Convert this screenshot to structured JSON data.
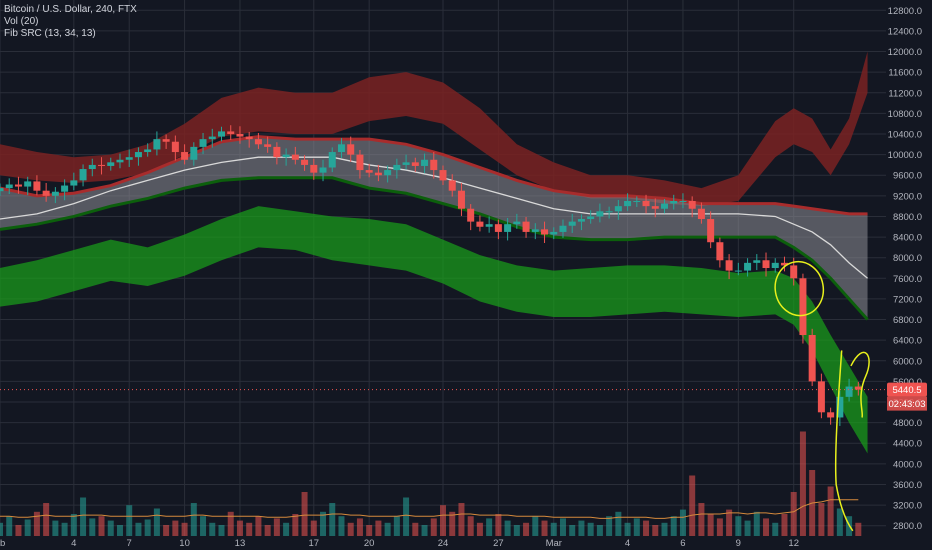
{
  "legend": {
    "symbol": "Bitcoin / U.S. Dollar, 240, FTX",
    "volume": "Vol (20)",
    "indicator": "Fib SRC (13, 34, 13)"
  },
  "price_tag": {
    "price": "5440.5",
    "countdown": "02:43:03"
  },
  "colors": {
    "background": "#131722",
    "up": "#26a69a",
    "down": "#ef5350",
    "upper_band": "#a82c2c",
    "upper_band_fill": "#7a2222",
    "mid_band": "#8e8e96",
    "basis": "#d9d9d9",
    "lower_band": "#1aa31a",
    "lower_band_dark": "#0c5f0c",
    "annotation": "#e8f01c",
    "grid": "#2a2e39"
  },
  "chart_data": {
    "type": "candlestick",
    "y_axis": {
      "labels": [
        "12800.0",
        "12400.0",
        "12000.0",
        "11600.0",
        "11200.0",
        "10800.0",
        "10400.0",
        "10000.0",
        "9600.0",
        "9200.0",
        "8800.0",
        "8400.0",
        "8000.0",
        "7600.0",
        "7200.0",
        "6800.0",
        "6400.0",
        "6000.0",
        "5600.0",
        "5200.0",
        "4800.0",
        "4400.0",
        "4000.0",
        "3600.0",
        "3200.0",
        "2800.0"
      ],
      "range": [
        2600,
        13000
      ]
    },
    "x_axis": {
      "labels": [
        "eb",
        "4",
        "7",
        "10",
        "13",
        "17",
        "20",
        "24",
        "27",
        "Mar",
        "4",
        "6",
        "9",
        "12"
      ],
      "days": [
        0,
        4,
        7,
        10,
        13,
        17,
        20,
        24,
        27,
        30,
        34,
        37,
        40,
        43
      ]
    },
    "day_range": [
      0,
      48
    ],
    "bands": {
      "x": [
        0,
        2,
        4,
        6,
        8,
        10,
        12,
        14,
        16,
        18,
        20,
        22,
        24,
        26,
        28,
        30,
        32,
        34,
        36,
        38,
        40,
        42,
        43,
        44,
        45,
        46,
        47
      ],
      "upper_top": [
        10200,
        10050,
        9950,
        10000,
        10200,
        10600,
        11100,
        11300,
        11200,
        11200,
        11500,
        11600,
        11400,
        10900,
        10200,
        9850,
        9600,
        9600,
        9500,
        9350,
        9600,
        10650,
        10900,
        10700,
        10100,
        10700,
        12000
      ],
      "upper_bot": [
        9600,
        9500,
        9450,
        9500,
        9650,
        10000,
        10350,
        10450,
        10400,
        10400,
        10650,
        10750,
        10600,
        10100,
        9600,
        9300,
        9150,
        9150,
        9050,
        9000,
        9100,
        9950,
        10200,
        10050,
        9600,
        10200,
        11200
      ],
      "mid_top": [
        9350,
        9200,
        9250,
        9400,
        9650,
        9950,
        10250,
        10350,
        10300,
        10300,
        10300,
        10200,
        10000,
        9750,
        9500,
        9300,
        9200,
        9200,
        9150,
        9050,
        9050,
        9050,
        9000,
        8950,
        8900,
        8850,
        8850
      ],
      "basis": [
        8750,
        8850,
        9050,
        9300,
        9500,
        9700,
        9850,
        9950,
        9950,
        9950,
        9800,
        9700,
        9550,
        9350,
        9150,
        8950,
        8850,
        8850,
        8850,
        8850,
        8850,
        8800,
        8650,
        8500,
        8250,
        7900,
        7600
      ],
      "mid_bot": [
        8550,
        8650,
        8800,
        9000,
        9150,
        9350,
        9500,
        9550,
        9550,
        9550,
        9350,
        9250,
        9050,
        8850,
        8600,
        8400,
        8350,
        8350,
        8400,
        8400,
        8400,
        8400,
        8200,
        7950,
        7600,
        7200,
        6800
      ],
      "green_top": [
        7800,
        7950,
        8150,
        8350,
        8200,
        8450,
        8750,
        9000,
        8900,
        8800,
        8750,
        8650,
        8350,
        8050,
        7850,
        7750,
        7800,
        7850,
        7850,
        7800,
        7700,
        7750,
        7600,
        7150,
        6500,
        5900,
        5300
      ],
      "green_bot": [
        7050,
        7150,
        7350,
        7550,
        7450,
        7650,
        7950,
        8200,
        8150,
        7950,
        7850,
        7750,
        7500,
        7150,
        6950,
        6850,
        6850,
        6900,
        6950,
        6900,
        6850,
        6900,
        6700,
        6200,
        5500,
        4800,
        4200
      ]
    },
    "candles": {
      "x": [
        0,
        0.5,
        1,
        1.5,
        2,
        2.5,
        3,
        3.5,
        4,
        4.5,
        5,
        5.5,
        6,
        6.5,
        7,
        7.5,
        8,
        8.5,
        9,
        9.5,
        10,
        10.5,
        11,
        11.5,
        12,
        12.5,
        13,
        13.5,
        14,
        14.5,
        15,
        15.5,
        16,
        16.5,
        17,
        17.5,
        18,
        18.5,
        19,
        19.5,
        20,
        20.5,
        21,
        21.5,
        22,
        22.5,
        23,
        23.5,
        24,
        24.5,
        25,
        25.5,
        26,
        26.5,
        27,
        27.5,
        28,
        28.5,
        29,
        29.5,
        30,
        30.5,
        31,
        31.5,
        32,
        32.5,
        33,
        33.5,
        34,
        34.5,
        35,
        35.5,
        36,
        36.5,
        37,
        37.5,
        38,
        38.5,
        39,
        39.5,
        40,
        40.5,
        41,
        41.5,
        42,
        42.5,
        43,
        43.5,
        44,
        44.5,
        45,
        45.5,
        46,
        46.5
      ],
      "close": [
        9350,
        9420,
        9380,
        9480,
        9300,
        9200,
        9280,
        9400,
        9500,
        9720,
        9800,
        9780,
        9850,
        9900,
        9950,
        10050,
        10100,
        10300,
        10250,
        10050,
        9900,
        10150,
        10300,
        10350,
        10450,
        10400,
        10350,
        10300,
        10200,
        10150,
        9950,
        10000,
        9900,
        9800,
        9650,
        9750,
        10050,
        10200,
        10000,
        9700,
        9650,
        9600,
        9700,
        9800,
        9850,
        9780,
        9900,
        9700,
        9500,
        9300,
        8950,
        8700,
        8600,
        8650,
        8500,
        8650,
        8700,
        8500,
        8550,
        8450,
        8500,
        8620,
        8700,
        8750,
        8800,
        8900,
        8900,
        9000,
        9100,
        9100,
        9000,
        8950,
        9050,
        9100,
        9100,
        8950,
        8750,
        8300,
        7950,
        7750,
        7750,
        7900,
        7950,
        7800,
        7900,
        7850,
        7600,
        6500,
        5600,
        5000,
        4900,
        5300,
        5500,
        5440.5
      ]
    },
    "volume": {
      "scale_max": 100,
      "values": [
        12,
        18,
        10,
        15,
        22,
        30,
        14,
        12,
        20,
        35,
        16,
        18,
        14,
        10,
        28,
        12,
        15,
        25,
        10,
        14,
        12,
        30,
        18,
        12,
        10,
        22,
        14,
        12,
        18,
        10,
        16,
        12,
        20,
        40,
        14,
        22,
        30,
        18,
        12,
        16,
        10,
        14,
        12,
        18,
        35,
        12,
        10,
        16,
        28,
        22,
        30,
        18,
        12,
        16,
        20,
        14,
        10,
        12,
        18,
        14,
        12,
        16,
        10,
        14,
        12,
        10,
        18,
        22,
        12,
        16,
        14,
        10,
        12,
        18,
        24,
        55,
        30,
        20,
        16,
        24,
        18,
        14,
        22,
        16,
        12,
        20,
        40,
        95,
        60,
        30,
        45,
        25,
        18,
        12
      ],
      "ma": [
        18,
        18,
        17,
        17,
        18,
        19,
        18,
        18,
        18,
        19,
        19,
        19,
        18,
        18,
        18,
        18,
        18,
        19,
        18,
        18,
        18,
        19,
        19,
        18,
        18,
        18,
        18,
        18,
        18,
        17,
        17,
        17,
        18,
        19,
        19,
        19,
        20,
        20,
        19,
        19,
        18,
        18,
        18,
        18,
        19,
        18,
        18,
        18,
        19,
        19,
        20,
        20,
        19,
        19,
        19,
        19,
        18,
        18,
        18,
        18,
        17,
        17,
        17,
        17,
        17,
        16,
        16,
        17,
        17,
        17,
        17,
        16,
        16,
        17,
        17,
        19,
        20,
        20,
        20,
        21,
        21,
        20,
        21,
        21,
        20,
        21,
        22,
        27,
        30,
        31,
        33,
        33,
        33,
        33
      ]
    },
    "markers": {
      "dotted_level": 5440.5
    }
  }
}
